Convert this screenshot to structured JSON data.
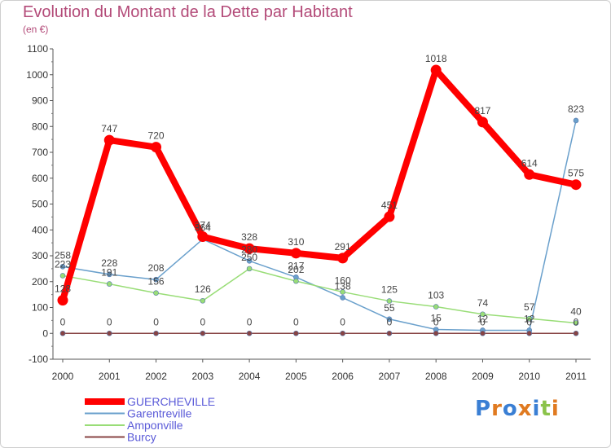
{
  "title": "Evolution du Montant de la Dette par Habitant",
  "subtitle": "(en €)",
  "logo_text": "Proxiti",
  "chart_data": {
    "type": "line",
    "title": "Evolution du Montant de la Dette par Habitant",
    "subtitle": "(en €)",
    "ylim": [
      -100,
      1100
    ],
    "y_ticks": [
      -100,
      0,
      100,
      200,
      300,
      400,
      500,
      600,
      700,
      800,
      900,
      1000,
      1100
    ],
    "x": [
      "2000",
      "2001",
      "2002",
      "2003",
      "2004",
      "2005",
      "2006",
      "2007",
      "2008",
      "2009",
      "2010",
      "2011"
    ],
    "grid": false,
    "legend_position": "bottom-left",
    "series": [
      {
        "name": "GUERCHEVILLE",
        "color": "#ff0000",
        "emphasis": true,
        "values": [
          128,
          747,
          720,
          374,
          328,
          310,
          291,
          451,
          1018,
          817,
          614,
          575
        ],
        "labels": [
          "128",
          "747",
          "720",
          "374",
          "328",
          "310",
          "291",
          "451",
          "1018",
          "817",
          "614",
          "575"
        ]
      },
      {
        "name": "Garentreville",
        "color": "#6aa0cc",
        "emphasis": false,
        "values": [
          258,
          228,
          208,
          364,
          280,
          217,
          138,
          55,
          15,
          12,
          12,
          823
        ],
        "labels": [
          "258",
          "228",
          "208",
          "364",
          "280",
          "217",
          "138",
          "55",
          "15",
          "12",
          "12",
          "823"
        ]
      },
      {
        "name": "Amponville",
        "color": "#99dd77",
        "emphasis": false,
        "values": [
          223,
          191,
          156,
          126,
          250,
          202,
          160,
          125,
          103,
          74,
          57,
          40
        ],
        "labels": [
          "223",
          "191",
          "156",
          "126",
          "250",
          "202",
          "160",
          "125",
          "103",
          "74",
          "57",
          "40"
        ]
      },
      {
        "name": "Burcy",
        "color": "#884444",
        "emphasis": false,
        "values": [
          0,
          0,
          0,
          0,
          0,
          0,
          0,
          0,
          0,
          0,
          0,
          0
        ],
        "labels": [
          "0",
          "0",
          "0",
          "0",
          "0",
          "0",
          "0",
          "0",
          "0",
          "0",
          "0",
          "0"
        ]
      }
    ]
  }
}
